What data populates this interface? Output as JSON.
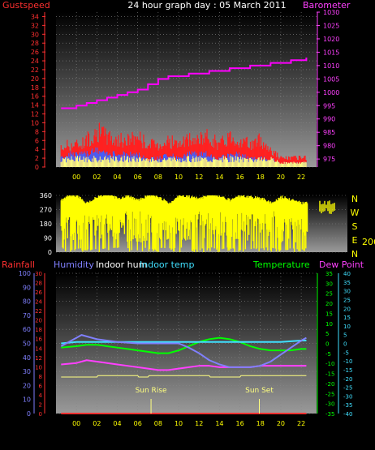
{
  "chart_data": [
    {
      "type": "line",
      "title": "24 hour graph day : 05 March 2011",
      "left_axis_label": "Gustspeed",
      "right_axis_label": "Barometer",
      "x_ticks": [
        "00",
        "02",
        "04",
        "06",
        "08",
        "10",
        "12",
        "14",
        "16",
        "18",
        "20",
        "22"
      ],
      "left_ticks": [
        0,
        2,
        4,
        6,
        8,
        10,
        12,
        14,
        16,
        18,
        20,
        22,
        24,
        26,
        28,
        30,
        32,
        34
      ],
      "right_ticks": [
        975,
        980,
        985,
        990,
        995,
        1000,
        1005,
        1010,
        1015,
        1020,
        1025,
        1030
      ],
      "left_range": [
        0,
        35
      ],
      "right_range": [
        972,
        1030
      ],
      "x_range_hours": [
        -2,
        23.5
      ],
      "colors": {
        "gust": "#ff2020",
        "wind": "#4060ff",
        "barometer": "#ff00ff",
        "left_axis": "#ff3030",
        "right_axis": "#ff40ff",
        "lowspeed": "#ffff80"
      },
      "series": [
        {
          "key": "barometer",
          "axis": "right",
          "x": [
            -1.5,
            0,
            1,
            2,
            3,
            4,
            5,
            6,
            7,
            8,
            9,
            10,
            11,
            12,
            13,
            14,
            15,
            16,
            17,
            18,
            19,
            20,
            21,
            22,
            22.5
          ],
          "values": [
            994,
            995,
            996,
            997,
            998,
            999,
            1000,
            1001,
            1003,
            1005,
            1006,
            1006,
            1007,
            1007,
            1008,
            1008,
            1009,
            1009,
            1010,
            1010,
            1011,
            1011,
            1012,
            1012,
            1013
          ]
        },
        {
          "key": "gust",
          "axis": "left",
          "x": [
            -1.5,
            -1,
            0,
            1,
            2,
            3,
            4,
            5,
            6,
            7,
            8,
            9,
            10,
            11,
            12,
            13,
            14,
            15,
            16,
            17,
            18,
            19,
            20,
            21,
            22,
            22.5
          ],
          "values": [
            4,
            5,
            5,
            6,
            8,
            7,
            6,
            6,
            7,
            5,
            5,
            6,
            5,
            6,
            6,
            7,
            5,
            7,
            6,
            5,
            6,
            4,
            2,
            2,
            2,
            2
          ]
        },
        {
          "key": "wind",
          "axis": "left",
          "x": [
            -1.5,
            -1,
            0,
            1,
            2,
            3,
            4,
            5,
            6,
            7,
            8,
            9,
            10,
            11,
            12,
            13,
            14,
            15,
            16,
            17,
            18,
            19,
            20,
            21,
            22,
            22.5
          ],
          "values": [
            2,
            3,
            3,
            3,
            4,
            3,
            3,
            3,
            3,
            2,
            2,
            3,
            2,
            3,
            3,
            3,
            2,
            3,
            3,
            2,
            2,
            2,
            1,
            1,
            1,
            1
          ]
        }
      ]
    },
    {
      "type": "scatter",
      "title": "",
      "left_ticks": [
        0,
        90,
        180,
        270,
        360
      ],
      "left_range": [
        0,
        360
      ],
      "compass_labels": [
        "N",
        "W",
        "S",
        "E",
        "N"
      ],
      "current_direction": "206",
      "colors": {
        "direction": "#ffff00",
        "axis": "#ffffff",
        "compass": "#ffff00"
      },
      "series": [
        {
          "key": "direction",
          "x": [
            -1.5,
            -1,
            0,
            1,
            2,
            3,
            4,
            5,
            6,
            7,
            8,
            9,
            10,
            11,
            12,
            13,
            14,
            15,
            16,
            17,
            18,
            19,
            20,
            21,
            22,
            22.5
          ],
          "values": [
            320,
            340,
            350,
            300,
            340,
            360,
            330,
            350,
            320,
            350,
            340,
            300,
            350,
            340,
            330,
            360,
            340,
            320,
            350,
            340,
            330,
            300,
            340,
            320,
            300,
            310
          ]
        }
      ]
    },
    {
      "type": "line",
      "title": "",
      "labels": {
        "rainfall": "Rainfall",
        "humidity": "Humidity",
        "indoor_hum": "Indoor hum",
        "indoor_temp": "Indoor temp",
        "temperature": "Temperature",
        "dew_point": "Dew Point",
        "sun_rise": "Sun Rise",
        "sun_set": "Sun Set"
      },
      "x_ticks": [
        "00",
        "02",
        "04",
        "06",
        "08",
        "10",
        "12",
        "14",
        "16",
        "18",
        "20",
        "22"
      ],
      "humidity_ticks": [
        0,
        10,
        20,
        30,
        40,
        50,
        60,
        70,
        80,
        90,
        100
      ],
      "rain_ticks": [
        0,
        2,
        4,
        6,
        8,
        10,
        12,
        14,
        16,
        18,
        20,
        22,
        24,
        26,
        28,
        30
      ],
      "temp_ticks": [
        -35,
        -30,
        -25,
        -20,
        -15,
        -10,
        -5,
        0,
        5,
        10,
        15,
        20,
        25,
        30,
        35
      ],
      "dew_ticks": [
        -40,
        -35,
        -30,
        -25,
        -20,
        -15,
        -10,
        -5,
        0,
        5,
        10,
        15,
        20,
        25,
        30,
        35,
        40
      ],
      "x_range_hours": [
        -2,
        23.5
      ],
      "sun_rise_hour": 7.3,
      "sun_set_hour": 17.9,
      "colors": {
        "humidity": "#8080ff",
        "indoor_hum": "#ffff80",
        "indoor_temp": "#40e0ff",
        "temperature": "#00ff00",
        "dew_point": "#ff40ff",
        "rainfall": "#ff3030"
      },
      "series": [
        {
          "key": "humidity",
          "axis": "humidity",
          "x": [
            -1.5,
            -1,
            0,
            0.5,
            1,
            2,
            4,
            6,
            8,
            10,
            11,
            12,
            13,
            14,
            15,
            16,
            17,
            18,
            19,
            20,
            21,
            22,
            22.5
          ],
          "values": [
            48,
            50,
            54,
            56,
            55,
            53,
            51,
            50,
            50,
            50,
            47,
            43,
            38,
            35,
            33,
            33,
            33,
            34,
            37,
            42,
            47,
            52,
            54
          ]
        },
        {
          "key": "indoor_hum",
          "axis": "humidity",
          "x": [
            -1.5,
            2,
            2.1,
            6,
            6.1,
            7,
            7.1,
            13,
            13.1,
            16,
            16.1,
            22.5
          ],
          "values": [
            26,
            26,
            27,
            27,
            26,
            26,
            27,
            27,
            26,
            26,
            27,
            27
          ]
        },
        {
          "key": "indoor_temp",
          "axis": "humidity",
          "x": [
            -1.5,
            0,
            2,
            4,
            6,
            8,
            10,
            12,
            14,
            16,
            18,
            20,
            22,
            22.5
          ],
          "values": [
            50,
            51,
            51,
            51,
            51,
            51,
            51,
            51,
            51,
            51,
            51,
            51,
            52,
            52
          ]
        },
        {
          "key": "temperature",
          "axis": "humidity",
          "x": [
            -1.5,
            0,
            1,
            2,
            3,
            4,
            5,
            6,
            7,
            8,
            9,
            10,
            11,
            12,
            13,
            14,
            15,
            16,
            17,
            18,
            19,
            20,
            21,
            22,
            22.5
          ],
          "values": [
            47,
            48,
            49,
            49,
            48,
            47,
            46,
            45,
            44,
            43,
            43,
            45,
            48,
            51,
            53,
            54,
            53,
            51,
            48,
            46,
            45,
            45,
            45,
            46,
            46
          ]
        },
        {
          "key": "dew_point",
          "axis": "humidity",
          "x": [
            -1.5,
            0,
            1,
            2,
            3,
            4,
            5,
            6,
            7,
            8,
            9,
            10,
            11,
            12,
            13,
            14,
            15,
            16,
            17,
            18,
            19,
            20,
            21,
            22,
            22.5
          ],
          "values": [
            35,
            36,
            38,
            37,
            36,
            35,
            34,
            33,
            32,
            31,
            31,
            32,
            33,
            34,
            34,
            33,
            33,
            33,
            33,
            34,
            34,
            34,
            34,
            34,
            34
          ]
        },
        {
          "key": "rainfall",
          "axis": "rain",
          "x": [
            -1.5,
            22.5
          ],
          "values": [
            0,
            0
          ]
        }
      ]
    }
  ]
}
